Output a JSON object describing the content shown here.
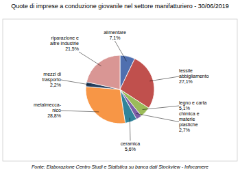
{
  "chart_data": {
    "type": "pie",
    "title": "Quote di imprese a conduzione giovanile nel settore manifatturiero - 30/06/2019",
    "source": "Fonte: Elaborazione Centro Studi e Statistica su banca dati Stockview - Infocamere",
    "categories": [
      "alimentare",
      "tessile\nabbigliamento",
      "legno e carta",
      "chimica e\nmaterie\nplastiche",
      "ceramica",
      "metalmecca-\nnico",
      "mezzi di\ntrasporto",
      "riparazione e\naltre industrie"
    ],
    "values": [
      7.1,
      27.1,
      5.1,
      2.7,
      5.6,
      28.8,
      2.2,
      21.5
    ],
    "value_labels": [
      "7,1%",
      "27,1%",
      "5,1%",
      "2,7%",
      "5,6%",
      "28,8%",
      "2,2%",
      "21,5%"
    ],
    "colors": [
      "#4f6faf",
      "#c0504d",
      "#9bbb59",
      "#7b5ea7",
      "#31849b",
      "#f79646",
      "#243f5e",
      "#d99694"
    ],
    "data_labels": true
  }
}
